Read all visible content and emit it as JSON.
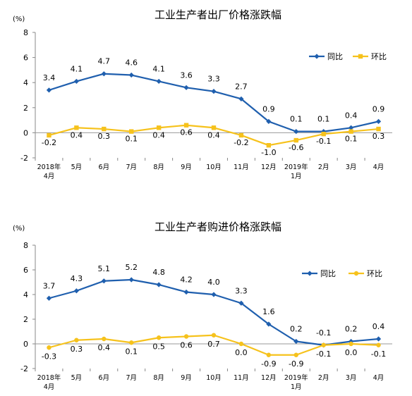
{
  "chart_data": [
    {
      "type": "line",
      "title": "工业生产者出厂价格涨跌幅",
      "unit_label": "(%)",
      "ylim": [
        -2,
        8
      ],
      "yticks": [
        "-2",
        "0",
        "2",
        "4",
        "6",
        "8"
      ],
      "grid": false,
      "legend_position": "top-right",
      "categories": [
        {
          "line1": "2018年",
          "line2": "4月"
        },
        {
          "line1": "5月",
          "line2": ""
        },
        {
          "line1": "6月",
          "line2": ""
        },
        {
          "line1": "7月",
          "line2": ""
        },
        {
          "line1": "8月",
          "line2": ""
        },
        {
          "line1": "9月",
          "line2": ""
        },
        {
          "line1": "10月",
          "line2": ""
        },
        {
          "line1": "11月",
          "line2": ""
        },
        {
          "line1": "12月",
          "line2": ""
        },
        {
          "line1": "2019年",
          "line2": "1月"
        },
        {
          "line1": "2月",
          "line2": ""
        },
        {
          "line1": "3月",
          "line2": ""
        },
        {
          "line1": "4月",
          "line2": ""
        }
      ],
      "series": [
        {
          "name": "同比",
          "color": "#1f5fae",
          "marker": "diamond",
          "values": [
            3.4,
            4.1,
            4.7,
            4.6,
            4.1,
            3.6,
            3.3,
            2.7,
            0.9,
            0.1,
            0.1,
            0.4,
            0.9
          ],
          "labels": [
            "3.4",
            "4.1",
            "4.7",
            "4.6",
            "4.1",
            "3.6",
            "3.3",
            "2.7",
            "0.9",
            "0.1",
            "0.1",
            "0.4",
            "0.9"
          ]
        },
        {
          "name": "环比",
          "color": "#f6c21c",
          "marker": "square",
          "values": [
            -0.2,
            0.4,
            0.3,
            0.1,
            0.4,
            0.6,
            0.4,
            -0.2,
            -1.0,
            -0.6,
            -0.1,
            0.1,
            0.3
          ],
          "labels": [
            "-0.2",
            "0.4",
            "0.3",
            "0.1",
            "0.4",
            "0.6",
            "0.4",
            "-0.2",
            "-1.0",
            "-0.6",
            "-0.1",
            "0.1",
            "0.3"
          ]
        }
      ]
    },
    {
      "type": "line",
      "title": "工业生产者购进价格涨跌幅",
      "unit_label": "(%)",
      "ylim": [
        -2,
        8
      ],
      "yticks": [
        "-2",
        "0",
        "2",
        "4",
        "6",
        "8"
      ],
      "grid": false,
      "legend_position": "right",
      "categories": [
        {
          "line1": "2018年",
          "line2": "4月"
        },
        {
          "line1": "5月",
          "line2": ""
        },
        {
          "line1": "6月",
          "line2": ""
        },
        {
          "line1": "7月",
          "line2": ""
        },
        {
          "line1": "8月",
          "line2": ""
        },
        {
          "line1": "9月",
          "line2": ""
        },
        {
          "line1": "10月",
          "line2": ""
        },
        {
          "line1": "11月",
          "line2": ""
        },
        {
          "line1": "12月",
          "line2": ""
        },
        {
          "line1": "2019年",
          "line2": "1月"
        },
        {
          "line1": "2月",
          "line2": ""
        },
        {
          "line1": "3月",
          "line2": ""
        },
        {
          "line1": "4月",
          "line2": ""
        }
      ],
      "series": [
        {
          "name": "同比",
          "color": "#1f5fae",
          "marker": "diamond",
          "values": [
            3.7,
            4.3,
            5.1,
            5.2,
            4.8,
            4.2,
            4.0,
            3.3,
            1.6,
            0.2,
            -0.1,
            0.2,
            0.4
          ],
          "labels": [
            "3.7",
            "4.3",
            "5.1",
            "5.2",
            "4.8",
            "4.2",
            "4.0",
            "3.3",
            "1.6",
            "0.2",
            "-0.1",
            "0.2",
            "0.4"
          ]
        },
        {
          "name": "环比",
          "color": "#f6c21c",
          "marker": "circle",
          "values": [
            -0.3,
            0.3,
            0.4,
            0.1,
            0.5,
            0.6,
            0.7,
            0.0,
            -0.9,
            -0.9,
            -0.1,
            0.0,
            -0.1
          ],
          "labels": [
            "-0.3",
            "0.3",
            "0.4",
            "0.1",
            "0.5",
            "0.6",
            "0.7",
            "0.0",
            "-0.9",
            "-0.9",
            "-0.1",
            "0.0",
            "-0.1"
          ]
        }
      ]
    }
  ]
}
